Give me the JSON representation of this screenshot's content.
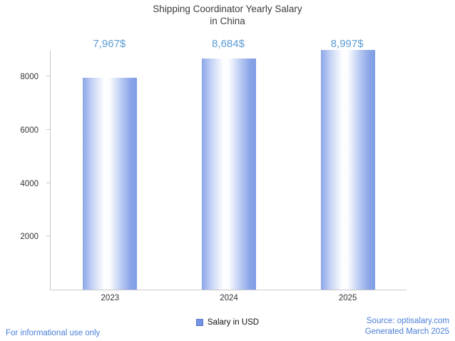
{
  "title": {
    "line1": "Shipping Coordinator Yearly Salary",
    "line2": "in China"
  },
  "legend": {
    "label": "Salary in USD"
  },
  "footer": {
    "disclaimer": "For informational use only",
    "source": "Source: optisalary.com",
    "generated": "Generated March 2025"
  },
  "chart_data": {
    "type": "bar",
    "title": "Shipping Coordinator Yearly Salary in China",
    "categories": [
      "2023",
      "2024",
      "2025"
    ],
    "values": [
      7967,
      8684,
      8997
    ],
    "value_labels": [
      "7,967$",
      "8,684$",
      "8,997$"
    ],
    "series_name": "Salary in USD",
    "xlabel": "",
    "ylabel": "",
    "ylim": [
      0,
      9000
    ],
    "yticks": [
      2000,
      4000,
      6000,
      8000
    ],
    "grid": false,
    "legend_position": "bottom",
    "colors": {
      "bar_edge": "#7f9ce6",
      "bar_center": "#ffffff",
      "value_label": "#5b9bd5",
      "footer_text": "#4a7ed9",
      "axis": "#c9c9c9",
      "title": "#3d3d3d",
      "tick_text": "#333333"
    }
  }
}
